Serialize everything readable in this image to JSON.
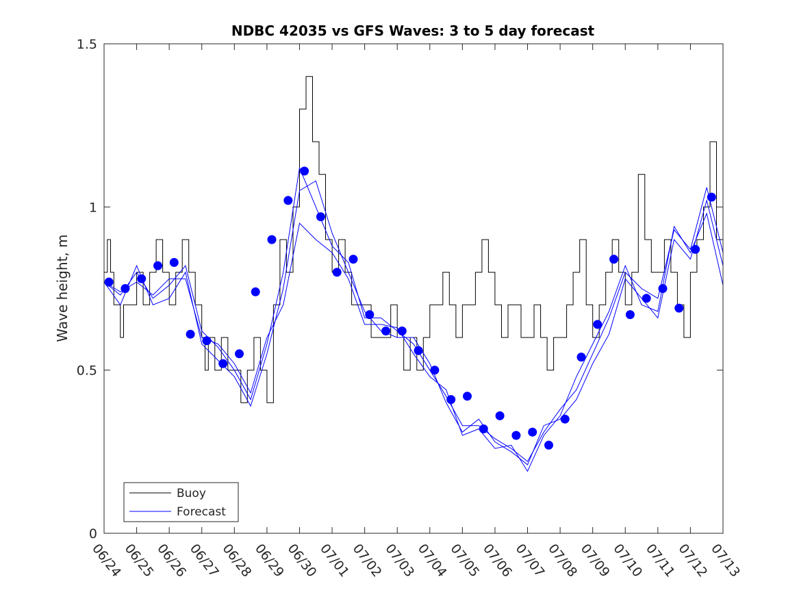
{
  "chart_data": {
    "type": "line",
    "title": "NDBC 42035 vs GFS Waves: 3 to 5 day forecast",
    "xlabel": "",
    "ylabel": "Wave height, m",
    "xlim": [
      "06/24",
      "07/13"
    ],
    "ylim": [
      0,
      1.5
    ],
    "yticks": [
      0,
      0.5,
      1,
      1.5
    ],
    "ytick_labels": [
      "0",
      "0.5",
      "1",
      "1.5"
    ],
    "xtick_labels": [
      "06/24",
      "06/25",
      "06/26",
      "06/27",
      "06/28",
      "06/29",
      "06/30",
      "07/01",
      "07/02",
      "07/03",
      "07/04",
      "07/05",
      "07/06",
      "07/07",
      "07/08",
      "07/09",
      "07/10",
      "07/11",
      "07/12",
      "07/13"
    ],
    "grid": false,
    "legend_position": "bottom-left",
    "legend": [
      "Buoy",
      "Forecast"
    ],
    "colors": {
      "buoy": "#000000",
      "forecast": "#0000ff",
      "axes": "#262626"
    },
    "series": [
      {
        "name": "Buoy",
        "style": "step",
        "x": [
          0.0,
          0.1,
          0.2,
          0.3,
          0.4,
          0.5,
          0.6,
          0.8,
          1.0,
          1.2,
          1.4,
          1.6,
          1.8,
          2.0,
          2.2,
          2.4,
          2.6,
          2.8,
          3.0,
          3.1,
          3.2,
          3.4,
          3.6,
          3.8,
          4.0,
          4.2,
          4.4,
          4.6,
          4.8,
          5.0,
          5.2,
          5.4,
          5.6,
          5.8,
          6.0,
          6.2,
          6.4,
          6.6,
          6.8,
          7.0,
          7.2,
          7.4,
          7.6,
          7.8,
          8.0,
          8.2,
          8.4,
          8.6,
          8.8,
          9.0,
          9.2,
          9.4,
          9.6,
          9.8,
          10.0,
          10.2,
          10.4,
          10.6,
          10.8,
          11.0,
          11.2,
          11.4,
          11.6,
          11.8,
          12.0,
          12.2,
          12.4,
          12.6,
          12.8,
          13.0,
          13.2,
          13.4,
          13.6,
          13.8,
          14.0,
          14.2,
          14.4,
          14.6,
          14.8,
          15.0,
          15.2,
          15.4,
          15.6,
          15.8,
          16.0,
          16.2,
          16.4,
          16.6,
          16.8,
          17.0,
          17.2,
          17.4,
          17.6,
          17.8,
          18.0,
          18.2,
          18.4,
          18.6,
          18.8,
          19.0
        ],
        "y": [
          0.8,
          0.9,
          0.8,
          0.7,
          0.7,
          0.6,
          0.7,
          0.7,
          0.8,
          0.7,
          0.8,
          0.9,
          0.8,
          0.7,
          0.8,
          0.9,
          0.8,
          0.7,
          0.6,
          0.5,
          0.6,
          0.5,
          0.6,
          0.5,
          0.5,
          0.4,
          0.5,
          0.6,
          0.5,
          0.4,
          0.7,
          0.9,
          0.8,
          1.0,
          1.3,
          1.4,
          1.2,
          1.1,
          0.9,
          0.8,
          0.9,
          0.8,
          0.7,
          0.7,
          0.7,
          0.6,
          0.6,
          0.6,
          0.7,
          0.6,
          0.5,
          0.6,
          0.5,
          0.6,
          0.7,
          0.7,
          0.8,
          0.7,
          0.6,
          0.7,
          0.7,
          0.8,
          0.9,
          0.8,
          0.7,
          0.6,
          0.7,
          0.7,
          0.6,
          0.6,
          0.7,
          0.6,
          0.5,
          0.6,
          0.6,
          0.7,
          0.8,
          0.9,
          0.7,
          0.6,
          0.7,
          0.8,
          0.9,
          0.8,
          0.7,
          0.8,
          1.1,
          0.9,
          0.8,
          0.8,
          0.9,
          0.8,
          0.7,
          0.6,
          0.8,
          0.9,
          1.0,
          1.2,
          0.9,
          0.9
        ]
      },
      {
        "name": "Forecast",
        "style": "lines",
        "segments": [
          {
            "x": [
              0.0,
              0.5,
              1.0,
              1.5,
              2.0,
              2.5,
              3.0,
              3.5,
              4.0,
              4.5,
              5.0,
              5.5,
              6.0,
              6.5,
              7.0,
              7.5,
              8.0,
              8.5,
              9.0,
              9.5,
              10.0,
              10.5,
              11.0,
              11.5,
              12.0,
              12.5,
              13.0,
              13.5,
              14.0,
              14.5,
              15.0,
              15.5,
              16.0,
              16.5,
              17.0,
              17.5,
              18.0,
              18.5,
              19.0
            ],
            "y": [
              0.77,
              0.73,
              0.8,
              0.72,
              0.76,
              0.82,
              0.62,
              0.57,
              0.5,
              0.41,
              0.58,
              0.8,
              1.12,
              1.0,
              0.88,
              0.83,
              0.66,
              0.66,
              0.62,
              0.58,
              0.5,
              0.42,
              0.33,
              0.33,
              0.29,
              0.26,
              0.22,
              0.31,
              0.38,
              0.44,
              0.55,
              0.66,
              0.8,
              0.75,
              0.72,
              0.93,
              0.87,
              1.06,
              0.86
            ]
          },
          {
            "x": [
              0.0,
              0.5,
              1.0,
              1.5,
              2.0,
              2.5,
              3.0,
              3.5,
              4.0,
              4.5,
              5.0,
              5.5,
              6.0,
              6.5,
              7.0,
              7.5,
              8.0,
              8.5,
              9.0,
              9.5,
              10.0,
              10.5,
              11.0,
              11.5,
              12.0,
              12.5,
              13.0,
              13.5,
              14.0,
              14.5,
              15.0,
              15.5,
              16.0,
              16.5,
              17.0,
              17.5,
              18.0,
              18.5,
              19.0
            ],
            "y": [
              0.77,
              0.7,
              0.82,
              0.7,
              0.72,
              0.8,
              0.58,
              0.53,
              0.48,
              0.39,
              0.55,
              0.75,
              1.05,
              1.08,
              0.92,
              0.8,
              0.68,
              0.62,
              0.6,
              0.6,
              0.52,
              0.4,
              0.31,
              0.35,
              0.28,
              0.25,
              0.21,
              0.33,
              0.35,
              0.41,
              0.52,
              0.61,
              0.78,
              0.72,
              0.66,
              0.9,
              0.84,
              1.02,
              0.82
            ]
          },
          {
            "x": [
              0.0,
              0.5,
              1.0,
              1.5,
              2.0,
              2.5,
              3.0,
              3.5,
              4.0,
              4.5,
              5.0,
              5.5,
              6.0,
              6.5,
              7.0,
              7.5,
              8.0,
              8.5,
              9.0,
              9.5,
              10.0,
              10.5,
              11.0,
              11.5,
              12.0,
              12.5,
              13.0,
              13.5,
              14.0,
              14.5,
              15.0,
              15.5,
              16.0,
              16.5,
              17.0,
              17.5,
              18.0,
              18.5,
              19.0
            ],
            "y": [
              0.77,
              0.74,
              0.77,
              0.73,
              0.78,
              0.78,
              0.6,
              0.58,
              0.52,
              0.43,
              0.6,
              0.7,
              0.95,
              0.9,
              0.86,
              0.78,
              0.64,
              0.64,
              0.63,
              0.55,
              0.48,
              0.44,
              0.3,
              0.32,
              0.26,
              0.27,
              0.19,
              0.3,
              0.36,
              0.48,
              0.58,
              0.68,
              0.82,
              0.7,
              0.68,
              0.94,
              0.86,
              0.98,
              0.76
            ]
          }
        ],
        "markers": {
          "x": [
            0.15,
            0.65,
            1.15,
            1.65,
            2.15,
            2.65,
            3.15,
            3.65,
            4.15,
            4.65,
            5.15,
            5.65,
            6.15,
            6.65,
            7.15,
            7.65,
            8.15,
            8.65,
            9.15,
            9.65,
            10.15,
            10.65,
            11.15,
            11.65,
            12.15,
            12.65,
            13.15,
            13.65,
            14.15,
            14.65,
            15.15,
            15.65,
            16.15,
            16.65,
            17.15,
            17.65,
            18.15,
            18.65
          ],
          "y": [
            0.77,
            0.75,
            0.78,
            0.82,
            0.83,
            0.61,
            0.59,
            0.52,
            0.55,
            0.74,
            0.9,
            1.02,
            1.11,
            0.97,
            0.8,
            0.84,
            0.67,
            0.62,
            0.62,
            0.56,
            0.5,
            0.41,
            0.42,
            0.32,
            0.36,
            0.3,
            0.31,
            0.27,
            0.35,
            0.54,
            0.64,
            0.84,
            0.67,
            0.72,
            0.75,
            0.69,
            0.87,
            1.03
          ]
        }
      }
    ]
  }
}
